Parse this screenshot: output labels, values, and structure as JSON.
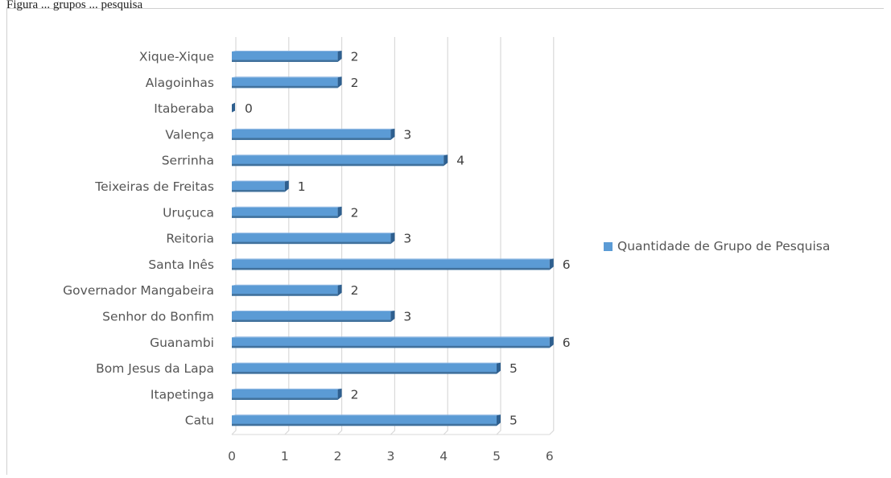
{
  "caption_fragment": "Figura ... grupos ... pesquisa",
  "chart_data": {
    "type": "bar",
    "orientation": "horizontal",
    "title": "",
    "xlabel": "",
    "ylabel": "",
    "categories": [
      "Xique-Xique",
      "Alagoinhas",
      "Itaberaba",
      "Valença",
      "Serrinha",
      "Teixeiras de Freitas",
      "Uruçuca",
      "Reitoria",
      "Santa Inês",
      "Governador Mangabeira",
      "Senhor do Bonfim",
      "Guanambi",
      "Bom Jesus da Lapa",
      "Itapetinga",
      "Catu"
    ],
    "series": [
      {
        "name": "Quantidade de Grupo de Pesquisa",
        "values": [
          2,
          2,
          0,
          3,
          4,
          1,
          2,
          3,
          6,
          2,
          3,
          6,
          5,
          2,
          5
        ],
        "color": "#5b9bd5"
      }
    ],
    "x_ticks": [
      "0",
      "1",
      "2",
      "3",
      "4",
      "5",
      "6"
    ],
    "xlim": [
      0,
      6
    ],
    "grid": "vertical",
    "legend_position": "right",
    "style": "3d-bar"
  }
}
